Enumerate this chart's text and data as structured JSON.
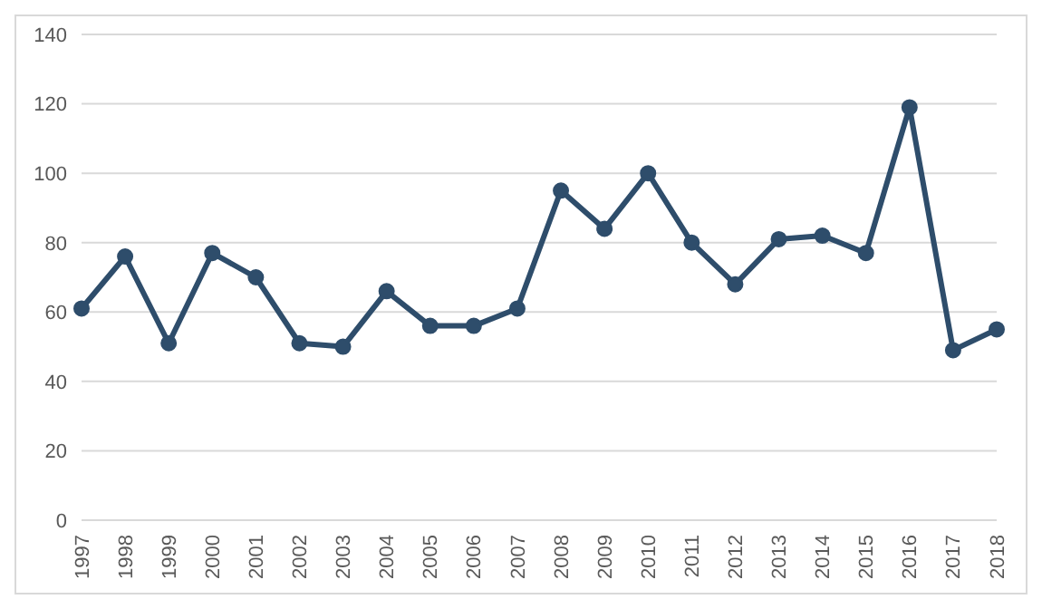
{
  "chart_data": {
    "type": "line",
    "categories": [
      "1997",
      "1998",
      "1999",
      "2000",
      "2001",
      "2002",
      "2003",
      "2004",
      "2005",
      "2006",
      "2007",
      "2008",
      "2009",
      "2010",
      "2011",
      "2012",
      "2013",
      "2014",
      "2015",
      "2016",
      "2017",
      "2018"
    ],
    "series": [
      {
        "color": "#2e4d6b",
        "values": [
          61,
          76,
          51,
          77,
          70,
          51,
          50,
          66,
          56,
          56,
          61,
          95,
          84,
          100,
          80,
          68,
          81,
          82,
          77,
          119,
          49,
          55
        ]
      }
    ],
    "ylim": [
      0,
      140
    ],
    "yticks": [
      0,
      20,
      40,
      60,
      80,
      100,
      120,
      140
    ],
    "grid": "y",
    "marker": "circle",
    "line_style": "solid",
    "legend": false
  }
}
